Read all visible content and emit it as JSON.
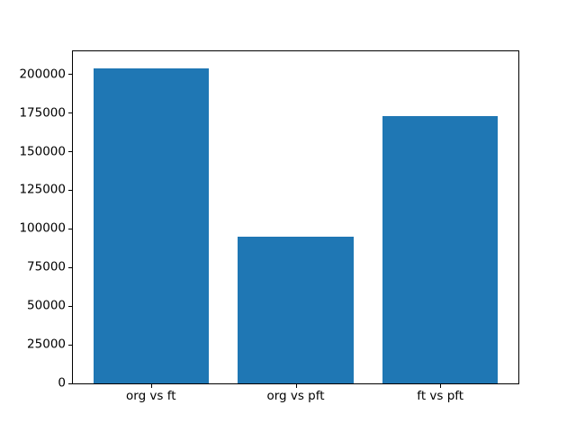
{
  "chart_data": {
    "type": "bar",
    "categories": [
      "org vs ft",
      "org vs pft",
      "ft vs pft"
    ],
    "values": [
      204000,
      95000,
      173000
    ],
    "title": "",
    "xlabel": "",
    "ylabel": "",
    "ylim": [
      0,
      215000
    ],
    "yticks": [
      0,
      25000,
      50000,
      75000,
      100000,
      125000,
      150000,
      175000,
      200000
    ],
    "bar_width_fraction": 0.8,
    "bar_color": "#1f77b4",
    "spine_color": "#000000",
    "background_color": "#ffffff",
    "grid": false,
    "legend": null
  }
}
